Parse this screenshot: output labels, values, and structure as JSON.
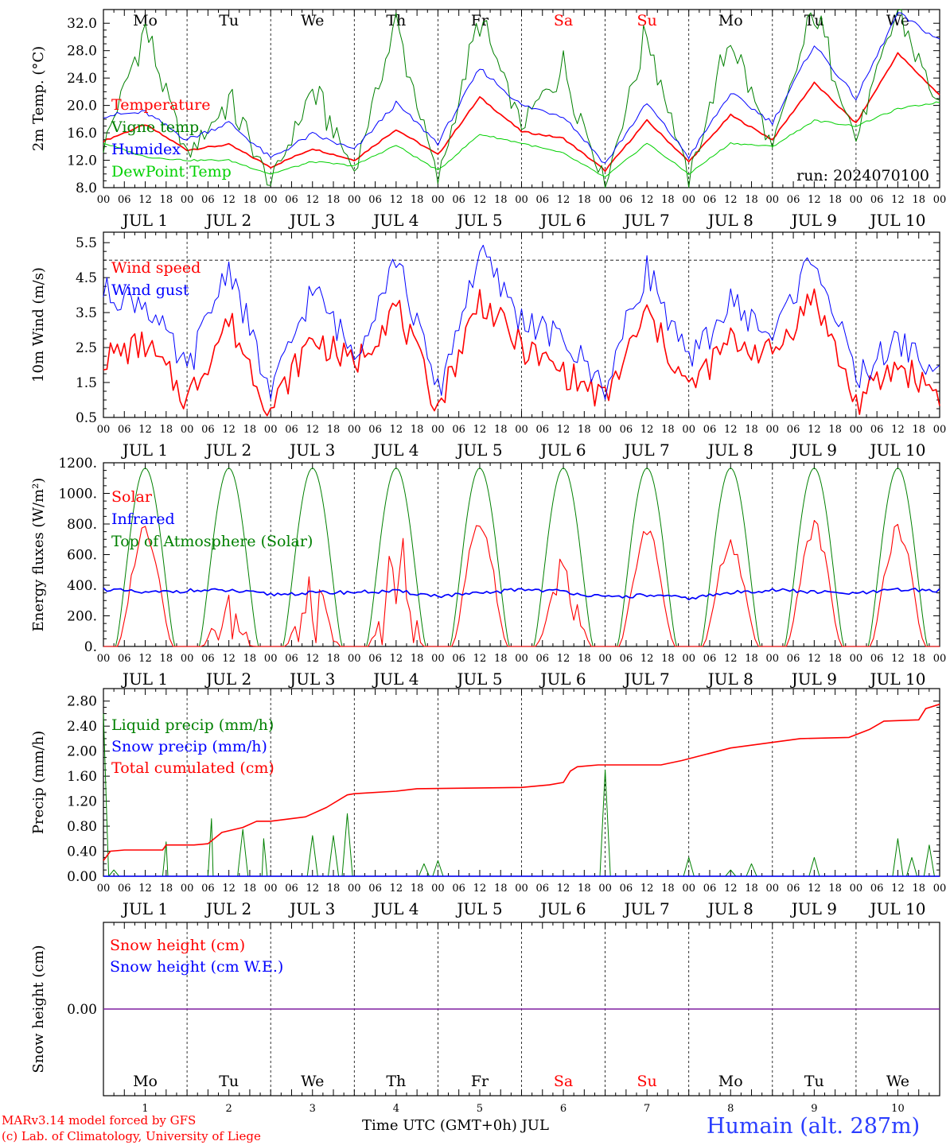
{
  "footer": {
    "model": "MARv3.14 model forced by GFS",
    "lab": "(c) Lab. of Climatology, University of Liege",
    "time_axis": "Time UTC (GMT+0h) JUL",
    "station": "Humain (alt. 287m)"
  },
  "colors": {
    "red": "#ff0000",
    "blue": "#0000ff",
    "green": "#008000",
    "lightgreen": "#00d000",
    "purple": "#7f1fa0"
  },
  "days": {
    "abbrev": [
      "Mo",
      "Tu",
      "We",
      "Th",
      "Fr",
      "Sa",
      "Su",
      "Mo",
      "Tu",
      "We"
    ],
    "weekend": [
      false,
      false,
      false,
      false,
      false,
      true,
      true,
      false,
      false,
      false
    ],
    "numbers": [
      "1",
      "2",
      "3",
      "4",
      "5",
      "6",
      "7",
      "8",
      "9",
      "10"
    ],
    "labels": [
      "JUL  1",
      "JUL  2",
      "JUL  3",
      "JUL  4",
      "JUL  5",
      "JUL  6",
      "JUL  7",
      "JUL  8",
      "JUL  9",
      "JUL 10"
    ],
    "hours": [
      "00",
      "06",
      "12",
      "18"
    ],
    "final_hour": "00"
  },
  "chart_data": [
    {
      "type": "line",
      "id": "temp",
      "ylabel": "2m Temp. (°C)",
      "ylim": [
        8,
        34
      ],
      "yticks": [
        "8.0",
        "12.0",
        "16.0",
        "20.0",
        "24.0",
        "28.0",
        "32.0"
      ],
      "annotation": "run: 2024070100",
      "x": [
        0,
        12,
        24,
        36,
        48,
        60,
        72,
        84,
        96,
        108,
        120,
        132,
        144,
        156,
        168,
        180,
        192,
        204,
        216,
        228,
        240
      ],
      "series": [
        {
          "name": "Temperature",
          "color": "#ff0000",
          "values": [
            14.8,
            17.2,
            13.5,
            14.3,
            11.0,
            13.7,
            12.0,
            16.5,
            12.8,
            21.2,
            16.2,
            15.2,
            10.5,
            17.8,
            11.8,
            18.6,
            15.0,
            23.3,
            17.4,
            27.6,
            21.5
          ]
        },
        {
          "name": "Vigne temp",
          "color": "#008000",
          "values": [
            14.0,
            31.3,
            12.5,
            20.8,
            8.5,
            22.3,
            10.5,
            32.0,
            9.0,
            32.5,
            17.0,
            25.8,
            8.5,
            30.9,
            9.0,
            30.3,
            13.5,
            34.0,
            15.0,
            34.0,
            19.5
          ]
        },
        {
          "name": "Humidex",
          "color": "#0000ff",
          "values": [
            18.5,
            19.0,
            15.0,
            17.5,
            12.3,
            15.8,
            13.5,
            20.3,
            14.5,
            25.4,
            20.0,
            18.5,
            11.5,
            20.3,
            12.5,
            21.8,
            17.5,
            28.9,
            21.0,
            33.5,
            29.5
          ]
        },
        {
          "name": "DewPoint Temp",
          "color": "#00d000",
          "values": [
            14.5,
            12.5,
            12.0,
            12.0,
            10.0,
            11.8,
            11.2,
            14.2,
            10.5,
            15.8,
            14.5,
            13.0,
            9.5,
            14.5,
            10.0,
            14.5,
            14.0,
            17.8,
            17.0,
            19.5,
            20.5
          ]
        }
      ]
    },
    {
      "type": "line",
      "id": "wind",
      "ylabel": "10m Wind (m/s)",
      "ylim": [
        0.5,
        5.8
      ],
      "yticks": [
        "0.5",
        "1.5",
        "2.5",
        "3.5",
        "4.5",
        "5.5"
      ],
      "reference_line": 5.0,
      "x": [
        0,
        12,
        24,
        36,
        48,
        60,
        72,
        84,
        96,
        108,
        120,
        132,
        144,
        156,
        168,
        180,
        192,
        204,
        216,
        228,
        240
      ],
      "series": [
        {
          "name": "Wind speed",
          "color": "#ff0000",
          "values": [
            2.2,
            2.6,
            1.0,
            3.3,
            0.7,
            2.8,
            2.0,
            3.7,
            0.8,
            3.9,
            2.5,
            1.8,
            1.0,
            3.5,
            1.3,
            2.7,
            2.3,
            4.0,
            0.9,
            2.0,
            1.2
          ]
        },
        {
          "name": "Wind gust",
          "color": "#0000ff",
          "values": [
            4.1,
            3.8,
            1.8,
            4.9,
            1.1,
            4.2,
            2.3,
            5.1,
            1.2,
            5.2,
            3.3,
            2.7,
            1.4,
            4.8,
            2.0,
            3.8,
            2.8,
            5.2,
            1.6,
            2.7,
            1.7
          ]
        }
      ]
    },
    {
      "type": "line",
      "id": "energy",
      "ylabel": "Energy fluxes (W/m²)",
      "ylim": [
        0,
        1200
      ],
      "yticks": [
        "0.",
        "200.",
        "400.",
        "600.",
        "800.",
        "1000.",
        "1200."
      ],
      "series": [
        {
          "name": "Solar",
          "color": "#ff0000",
          "daily_peak": [
            830,
            360,
            470,
            870,
            870,
            620,
            810,
            720,
            840,
            810
          ]
        },
        {
          "name": "Infrared",
          "color": "#0000ff",
          "x": [
            0,
            12,
            24,
            36,
            48,
            60,
            72,
            84,
            96,
            108,
            120,
            132,
            144,
            156,
            168,
            180,
            192,
            204,
            216,
            228,
            240
          ],
          "values": [
            375,
            350,
            365,
            365,
            340,
            350,
            355,
            360,
            330,
            345,
            375,
            360,
            320,
            335,
            315,
            350,
            370,
            355,
            345,
            370,
            365
          ]
        },
        {
          "name": "Top of Atmosphere (Solar)",
          "color": "#008000",
          "daily_peak": [
            1165,
            1165,
            1165,
            1165,
            1165,
            1165,
            1165,
            1165,
            1165,
            1165
          ]
        }
      ]
    },
    {
      "type": "line",
      "id": "precip",
      "ylabel": "Precip (mm/h)",
      "ylim": [
        0,
        3.0
      ],
      "yticks": [
        "0.00",
        "0.40",
        "0.80",
        "1.20",
        "1.60",
        "2.00",
        "2.40",
        "2.80"
      ],
      "series": [
        {
          "name": "Liquid precip (mm/h)",
          "color": "#008000",
          "x": [
            0,
            3,
            6,
            12,
            17,
            18,
            30,
            31,
            40,
            46,
            47,
            60,
            66,
            70,
            76,
            92,
            96,
            102,
            144,
            156,
            158,
            168,
            180,
            186,
            204,
            210,
            228,
            232,
            237
          ],
          "values": [
            2.6,
            0.1,
            0.0,
            0.0,
            0.0,
            0.55,
            0.0,
            0.92,
            0.75,
            0.6,
            0.0,
            0.65,
            0.65,
            1.0,
            0.0,
            0.2,
            0.25,
            0.0,
            1.7,
            0.0,
            0.0,
            0.3,
            0.1,
            0.2,
            0.3,
            0.0,
            0.6,
            0.3,
            0.5
          ]
        },
        {
          "name": "Snow precip (mm/h)",
          "color": "#0000ff",
          "x": [
            0,
            240
          ],
          "values": [
            0.0,
            0.0
          ]
        },
        {
          "name": "Total cumulated (cm)",
          "color": "#ff0000",
          "x": [
            0,
            2,
            6,
            12,
            17,
            18,
            26,
            30,
            34,
            40,
            44,
            48,
            58,
            64,
            70,
            72,
            84,
            90,
            120,
            128,
            132,
            134,
            136,
            142,
            150,
            160,
            166,
            180,
            200,
            214,
            220,
            224,
            234,
            236,
            240
          ],
          "values": [
            0.25,
            0.4,
            0.42,
            0.42,
            0.42,
            0.5,
            0.5,
            0.52,
            0.7,
            0.78,
            0.88,
            0.88,
            0.95,
            1.1,
            1.3,
            1.32,
            1.36,
            1.4,
            1.42,
            1.46,
            1.5,
            1.68,
            1.75,
            1.78,
            1.78,
            1.78,
            1.85,
            2.05,
            2.2,
            2.22,
            2.35,
            2.48,
            2.5,
            2.68,
            2.75
          ]
        }
      ]
    },
    {
      "type": "line",
      "id": "snow",
      "ylabel": "Snow height (cm)",
      "ylim": [
        -1,
        1
      ],
      "yticks": [
        "0.00"
      ],
      "series": [
        {
          "name": "Snow height (cm)",
          "color": "#ff0000",
          "x": [
            0,
            240
          ],
          "values": [
            0,
            0
          ]
        },
        {
          "name": "Snow height (cm W.E.)",
          "color": "#0000ff",
          "x": [
            0,
            240
          ],
          "values": [
            0,
            0
          ]
        }
      ]
    }
  ]
}
